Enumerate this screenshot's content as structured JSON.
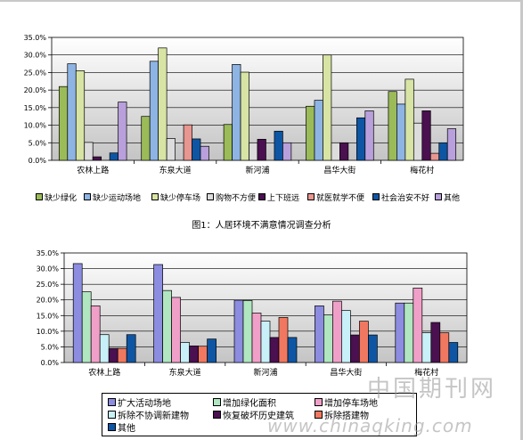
{
  "chart_data": [
    {
      "type": "bar",
      "title": "图1：人居环境不满意情况调查分析",
      "categories": [
        "农林上路",
        "东泉大道",
        "新河浦",
        "昌华大街",
        "梅花村"
      ],
      "ylim": [
        0,
        0.35
      ],
      "yticks": [
        "0.0%",
        "5.0%",
        "10.0%",
        "15.0%",
        "20.0%",
        "25.0%",
        "30.0%",
        "35.0%"
      ],
      "grid": true,
      "legend_position": "bottom",
      "series": [
        {
          "name": "缺少绿化",
          "color": "#9bbb59",
          "values": [
            0.21,
            0.125,
            0.102,
            0.154,
            0.196
          ]
        },
        {
          "name": "缺少运动场地",
          "color": "#8eb4e3",
          "values": [
            0.275,
            0.282,
            0.273,
            0.171,
            0.16
          ]
        },
        {
          "name": "缺少停车场",
          "color": "#d7e4a4",
          "values": [
            0.255,
            0.32,
            0.251,
            0.3,
            0.231
          ]
        },
        {
          "name": "购物不方便",
          "color": "#dcdcdc",
          "values": [
            0.051,
            0.062,
            0.05,
            0.05,
            0.106
          ]
        },
        {
          "name": "上下班远",
          "color": "#4a1050",
          "values": [
            0.01,
            0.0,
            0.06,
            0.05,
            0.141
          ]
        },
        {
          "name": "就医就学不便",
          "color": "#e89690",
          "values": [
            0.0,
            0.101,
            0.0,
            0.0,
            0.02
          ]
        },
        {
          "name": "社会治安不好",
          "color": "#0e56a4",
          "values": [
            0.021,
            0.061,
            0.083,
            0.121,
            0.05
          ]
        },
        {
          "name": "其他",
          "color": "#b9a0dc",
          "values": [
            0.166,
            0.04,
            0.05,
            0.141,
            0.09
          ]
        }
      ]
    },
    {
      "type": "bar",
      "categories": [
        "农林上路",
        "东泉大道",
        "新河浦",
        "昌华大街",
        "梅花村"
      ],
      "ylim": [
        0,
        0.35
      ],
      "yticks": [
        "0.0%",
        "5.0%",
        "10.0%",
        "15.0%",
        "20.0%",
        "25.0%",
        "30.0%",
        "35.0%"
      ],
      "grid": true,
      "legend_position": "bottom",
      "series": [
        {
          "name": "扩大活动场地",
          "color": "#8c8ce0",
          "values": [
            0.316,
            0.313,
            0.199,
            0.181,
            0.19
          ]
        },
        {
          "name": "增加绿化面积",
          "color": "#b0e6c0",
          "values": [
            0.226,
            0.23,
            0.198,
            0.152,
            0.19
          ]
        },
        {
          "name": "增加停车场地",
          "color": "#f0a0c8",
          "values": [
            0.181,
            0.208,
            0.158,
            0.196,
            0.238
          ]
        },
        {
          "name": "拆除不协调新建物",
          "color": "#c8f0f8",
          "values": [
            0.089,
            0.064,
            0.132,
            0.166,
            0.095
          ]
        },
        {
          "name": "恢复破坏历史建筑",
          "color": "#4a1050",
          "values": [
            0.045,
            0.053,
            0.08,
            0.088,
            0.128
          ]
        },
        {
          "name": "拆除搭建物",
          "color": "#f07860",
          "values": [
            0.045,
            0.052,
            0.144,
            0.132,
            0.095
          ]
        },
        {
          "name": "其他",
          "color": "#0e56a4",
          "values": [
            0.089,
            0.075,
            0.08,
            0.088,
            0.064
          ]
        }
      ]
    }
  ],
  "watermark": {
    "line1": "中国期刊网",
    "line2": "www.chinaqking.com"
  }
}
